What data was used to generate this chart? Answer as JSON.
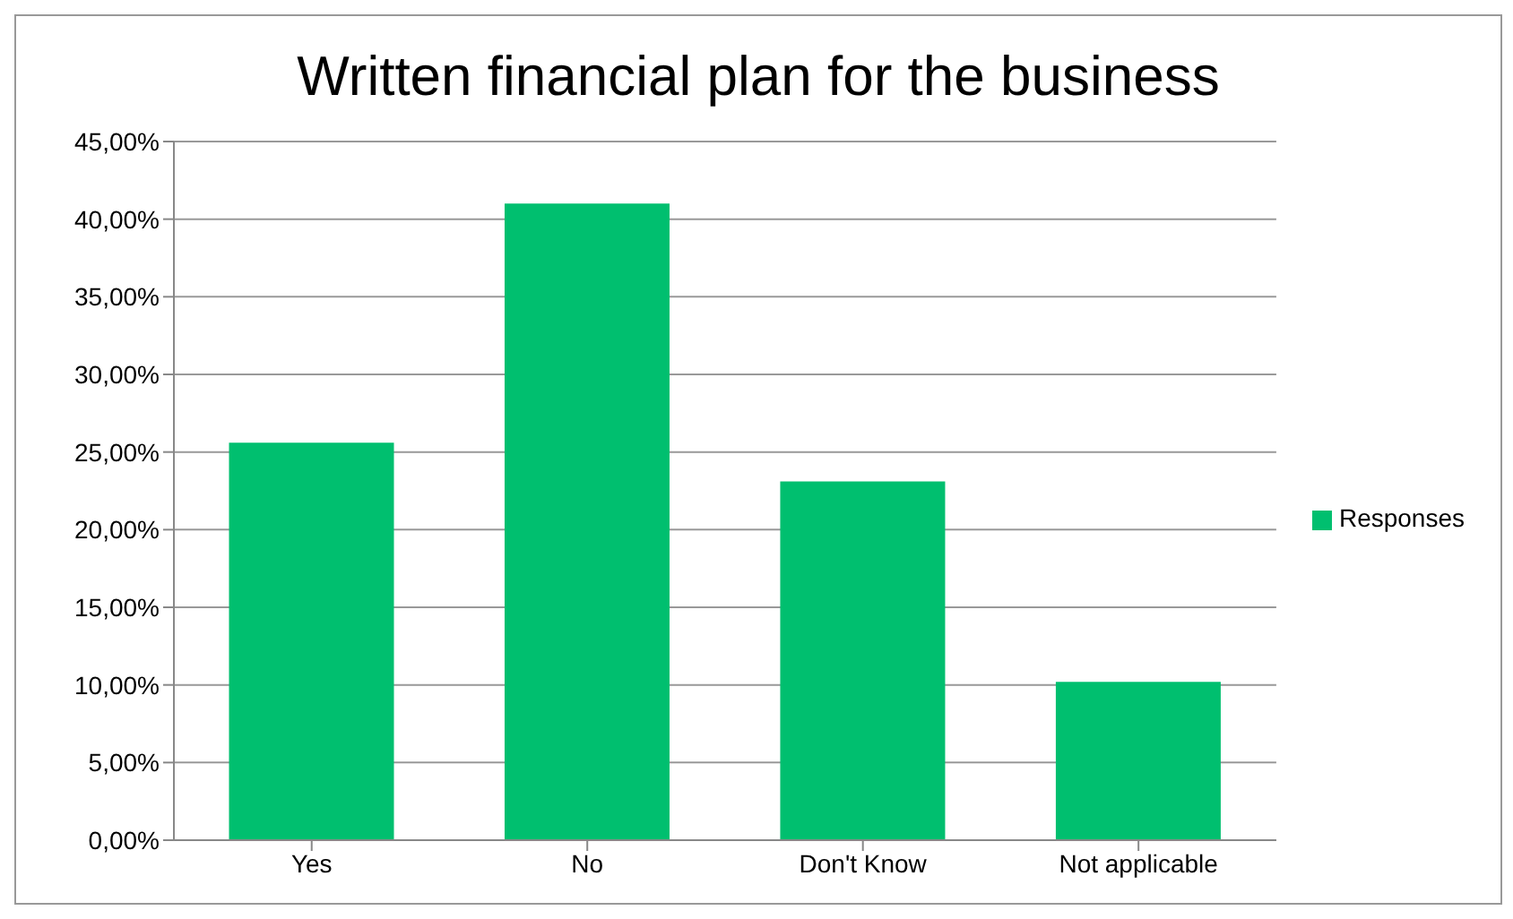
{
  "chart_data": {
    "type": "bar",
    "title": "Written financial plan for the business",
    "categories": [
      "Yes",
      "No",
      "Don't Know",
      "Not applicable"
    ],
    "series": [
      {
        "name": "Responses",
        "color": "#00bf6f",
        "values": [
          25.6,
          41,
          23.1,
          10.2
        ]
      }
    ],
    "ylim": [
      0,
      45
    ],
    "yticks": [
      {
        "value": 0,
        "label": "0,00%"
      },
      {
        "value": 5,
        "label": "5,00%"
      },
      {
        "value": 10,
        "label": "10,00%"
      },
      {
        "value": 15,
        "label": "15,00%"
      },
      {
        "value": 20,
        "label": "20,00%"
      },
      {
        "value": 25,
        "label": "25,00%"
      },
      {
        "value": 30,
        "label": "30,00%"
      },
      {
        "value": 35,
        "label": "35,00%"
      },
      {
        "value": 40,
        "label": "40,00%"
      },
      {
        "value": 45,
        "label": "45,00%"
      }
    ],
    "grid": "y",
    "legend": "right"
  }
}
